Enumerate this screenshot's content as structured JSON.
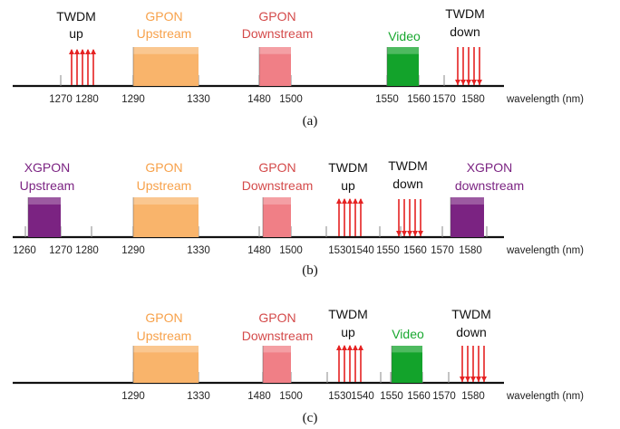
{
  "colors": {
    "gpon_up": "#f9b46b",
    "gpon_down": "#f07f86",
    "video": "#13a32b",
    "xgpon": "#7b2382",
    "twdm": "#e52222",
    "gpon_up_text": "#f7a14a",
    "gpon_down_text": "#d44a4a",
    "video_text": "#19a830",
    "xgpon_text": "#7b2382",
    "twdm_text": "#111111"
  },
  "diagrams": [
    {
      "caption": "(a)",
      "wavelength_label": "wavelength (nm)",
      "ticks": [
        "1270",
        "1280",
        "1290",
        "1330",
        "1480",
        "1500",
        "1550",
        "1560",
        "1570",
        "1580"
      ],
      "bands": [
        {
          "id": "twdm-up",
          "type": "arrows",
          "label_lines": [
            "TWDM",
            "up"
          ]
        },
        {
          "id": "gpon-upstream",
          "type": "box",
          "color": "gpon_up",
          "label_lines": [
            "GPON",
            "Upstream"
          ]
        },
        {
          "id": "gpon-downstream",
          "type": "box",
          "color": "gpon_down",
          "label_lines": [
            "GPON",
            "Downstream"
          ]
        },
        {
          "id": "video",
          "type": "box",
          "color": "video",
          "label_lines": [
            "Video"
          ]
        },
        {
          "id": "twdm-down",
          "type": "arrows",
          "label_lines": [
            "TWDM",
            "down"
          ]
        }
      ]
    },
    {
      "caption": "(b)",
      "wavelength_label": "wavelength (nm)",
      "ticks": [
        "1260",
        "1270",
        "1280",
        "1290",
        "1330",
        "1480",
        "1500",
        "1530",
        "1540",
        "1550",
        "1560",
        "1570",
        "1580"
      ],
      "bands": [
        {
          "id": "xgpon-upstream",
          "type": "box",
          "color": "xgpon",
          "label_lines": [
            "XGPON",
            "Upstream"
          ]
        },
        {
          "id": "gpon-upstream",
          "type": "box",
          "color": "gpon_up",
          "label_lines": [
            "GPON",
            "Upstream"
          ]
        },
        {
          "id": "gpon-downstream",
          "type": "box",
          "color": "gpon_down",
          "label_lines": [
            "GPON",
            "Downstream"
          ]
        },
        {
          "id": "twdm-up",
          "type": "arrows",
          "label_lines": [
            "TWDM",
            "up"
          ]
        },
        {
          "id": "twdm-down",
          "type": "arrows",
          "label_lines": [
            "TWDM",
            "down"
          ]
        },
        {
          "id": "xgpon-downstream",
          "type": "box",
          "color": "xgpon",
          "label_lines": [
            "XGPON",
            "downstream"
          ]
        }
      ]
    },
    {
      "caption": "(c)",
      "wavelength_label": "wavelength (nm)",
      "ticks": [
        "1290",
        "1330",
        "1480",
        "1500",
        "1530",
        "1540",
        "1550",
        "1560",
        "1570",
        "1580"
      ],
      "bands": [
        {
          "id": "gpon-upstream",
          "type": "box",
          "color": "gpon_up",
          "label_lines": [
            "GPON",
            "Upstream"
          ]
        },
        {
          "id": "gpon-downstream",
          "type": "box",
          "color": "gpon_down",
          "label_lines": [
            "GPON",
            "Downstream"
          ]
        },
        {
          "id": "twdm-up",
          "type": "arrows",
          "label_lines": [
            "TWDM",
            "up"
          ]
        },
        {
          "id": "video",
          "type": "box",
          "color": "video",
          "label_lines": [
            "Video"
          ]
        },
        {
          "id": "twdm-down",
          "type": "arrows",
          "label_lines": [
            "TWDM",
            "down"
          ]
        }
      ]
    }
  ]
}
